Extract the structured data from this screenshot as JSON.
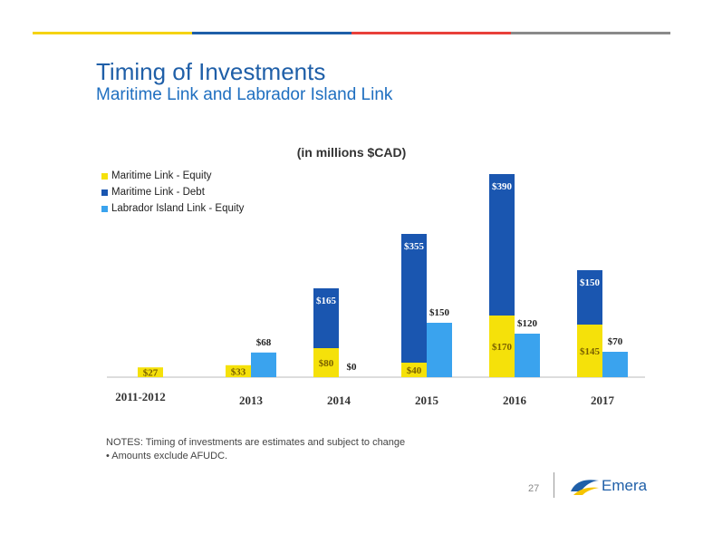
{
  "page": {
    "title": "Timing of Investments",
    "subtitle": "Maritime Link and Labrador Island Link",
    "page_number": "27",
    "logo_text": "Emera",
    "notes": [
      "NOTES:    Timing of investments are estimates and subject to change",
      "•   Amounts exclude AFUDC."
    ],
    "top_bar_colors": [
      "#f5d312",
      "#1f5fa8",
      "#e8403a",
      "#8a8a8a"
    ]
  },
  "chart_data": {
    "type": "bar",
    "title": "(in millions $CAD)",
    "categories": [
      "2011-2012",
      "2013",
      "2014",
      "2015",
      "2016",
      "2017"
    ],
    "series": [
      {
        "name": "Maritime Link - Equity",
        "color": "#f5e10a",
        "stack": "maritime",
        "values": [
          27,
          33,
          80,
          40,
          170,
          145
        ],
        "labels": [
          "$27",
          "$33",
          "$80",
          "$40",
          "$170",
          "$145"
        ]
      },
      {
        "name": "Maritime Link - Debt",
        "color": "#1a56b0",
        "stack": "maritime",
        "values": [
          0,
          0,
          165,
          355,
          390,
          150
        ],
        "labels": [
          "",
          "",
          "$165",
          "$355",
          "$390",
          "$150"
        ]
      },
      {
        "name": "Labrador Island Link - Equity",
        "color": "#3aa3ee",
        "stack": "labrador",
        "values": [
          0,
          68,
          0,
          150,
          120,
          70
        ],
        "labels": [
          "",
          "$68",
          "$0",
          "$150",
          "$120",
          "$70"
        ]
      }
    ],
    "legend_position": "top-left",
    "grid": false,
    "ylim": [
      0,
      600
    ]
  }
}
